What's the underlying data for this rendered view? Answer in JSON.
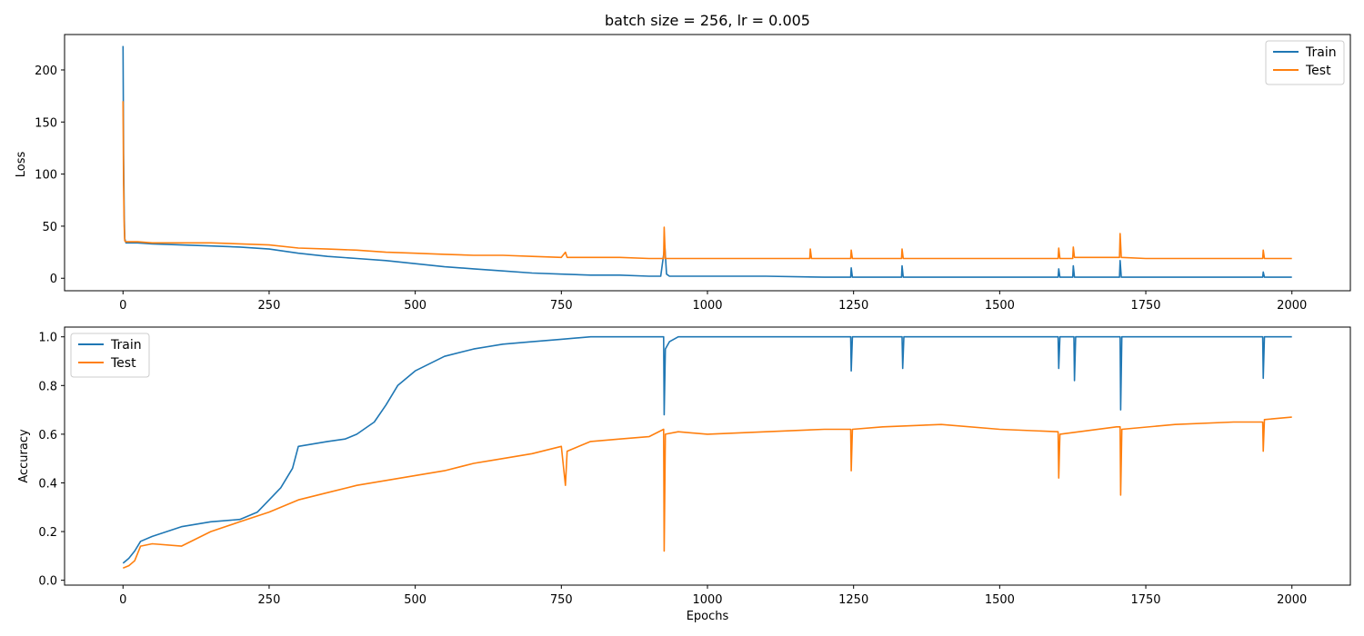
{
  "chart_data": [
    {
      "type": "line",
      "title": "batch size = 256, lr = 0.005",
      "xlabel": "",
      "ylabel": "Loss",
      "xlim": [
        -100,
        2100
      ],
      "ylim": [
        -12,
        234
      ],
      "xticks": [
        0,
        250,
        500,
        750,
        1000,
        1250,
        1500,
        1750,
        2000
      ],
      "yticks": [
        0,
        50,
        100,
        150,
        200
      ],
      "legend": "top-right",
      "grid": false,
      "series": [
        {
          "name": "Train",
          "color": "#1f77b4",
          "x": [
            0,
            1,
            2,
            3,
            5,
            25,
            50,
            100,
            150,
            200,
            250,
            300,
            350,
            400,
            450,
            500,
            550,
            600,
            650,
            700,
            750,
            800,
            850,
            900,
            920,
            927,
            930,
            935,
            950,
            1000,
            1100,
            1200,
            1245,
            1246,
            1248,
            1300,
            1332,
            1333,
            1335,
            1400,
            1500,
            1550,
            1600,
            1601,
            1603,
            1625,
            1626,
            1628,
            1700,
            1705,
            1706,
            1708,
            1750,
            1800,
            1900,
            1950,
            1951,
            1953,
            2000
          ],
          "y": [
            223,
            120,
            60,
            38,
            34,
            34,
            33,
            32,
            31,
            30,
            28,
            24,
            21,
            19,
            17,
            14,
            11,
            9,
            7,
            5,
            4,
            3,
            3,
            2,
            2,
            31,
            4,
            2,
            2,
            2,
            2,
            1,
            1,
            10,
            1,
            1,
            1,
            12,
            1,
            1,
            1,
            1,
            1,
            9,
            1,
            1,
            12,
            1,
            1,
            1,
            17,
            1,
            1,
            1,
            1,
            1,
            6,
            1,
            1
          ]
        },
        {
          "name": "Test",
          "color": "#ff7f0e",
          "x": [
            0,
            1,
            2,
            3,
            5,
            25,
            50,
            100,
            150,
            200,
            250,
            300,
            350,
            400,
            450,
            500,
            550,
            600,
            650,
            700,
            750,
            757,
            760,
            800,
            850,
            900,
            925,
            926,
            928,
            950,
            1000,
            1100,
            1175,
            1176,
            1178,
            1245,
            1246,
            1248,
            1300,
            1332,
            1333,
            1335,
            1400,
            1500,
            1550,
            1600,
            1601,
            1603,
            1625,
            1626,
            1628,
            1700,
            1705,
            1706,
            1708,
            1750,
            1800,
            1900,
            1950,
            1951,
            1953,
            2000
          ],
          "y": [
            170,
            90,
            50,
            36,
            35,
            35,
            34,
            34,
            34,
            33,
            32,
            29,
            28,
            27,
            25,
            24,
            23,
            22,
            22,
            21,
            20,
            25,
            20,
            20,
            20,
            19,
            19,
            49,
            19,
            19,
            19,
            19,
            19,
            28,
            19,
            19,
            27,
            19,
            19,
            19,
            28,
            19,
            19,
            19,
            19,
            19,
            29,
            19,
            19,
            30,
            20,
            20,
            20,
            43,
            20,
            19,
            19,
            19,
            19,
            27,
            19,
            19
          ]
        }
      ]
    },
    {
      "type": "line",
      "title": "",
      "xlabel": "Epochs",
      "ylabel": "Accuracy",
      "xlim": [
        -100,
        2100
      ],
      "ylim": [
        -0.02,
        1.04
      ],
      "xticks": [
        0,
        250,
        500,
        750,
        1000,
        1250,
        1500,
        1750,
        2000
      ],
      "yticks": [
        0.0,
        0.2,
        0.4,
        0.6,
        0.8,
        1.0
      ],
      "legend": "top-left",
      "grid": false,
      "series": [
        {
          "name": "Train",
          "color": "#1f77b4",
          "x": [
            0,
            10,
            20,
            30,
            50,
            100,
            150,
            200,
            230,
            250,
            270,
            290,
            300,
            350,
            380,
            400,
            430,
            450,
            470,
            500,
            550,
            600,
            650,
            700,
            750,
            800,
            850,
            900,
            925,
            926,
            928,
            935,
            950,
            1000,
            1100,
            1200,
            1245,
            1246,
            1248,
            1333,
            1334,
            1336,
            1400,
            1500,
            1600,
            1601,
            1603,
            1627,
            1628,
            1630,
            1700,
            1706,
            1707,
            1709,
            1800,
            1900,
            1950,
            1951,
            1953,
            2000
          ],
          "y": [
            0.07,
            0.09,
            0.12,
            0.16,
            0.18,
            0.22,
            0.24,
            0.25,
            0.28,
            0.33,
            0.38,
            0.46,
            0.55,
            0.57,
            0.58,
            0.6,
            0.65,
            0.72,
            0.8,
            0.86,
            0.92,
            0.95,
            0.97,
            0.98,
            0.99,
            1.0,
            1.0,
            1.0,
            1.0,
            0.68,
            0.95,
            0.98,
            1.0,
            1.0,
            1.0,
            1.0,
            1.0,
            0.86,
            1.0,
            1.0,
            0.87,
            1.0,
            1.0,
            1.0,
            1.0,
            0.87,
            1.0,
            1.0,
            0.82,
            1.0,
            1.0,
            1.0,
            0.7,
            1.0,
            1.0,
            1.0,
            1.0,
            0.83,
            1.0,
            1.0
          ]
        },
        {
          "name": "Test",
          "color": "#ff7f0e",
          "x": [
            0,
            10,
            20,
            30,
            50,
            100,
            150,
            200,
            250,
            300,
            350,
            400,
            450,
            500,
            550,
            600,
            650,
            700,
            750,
            757,
            760,
            800,
            850,
            900,
            925,
            926,
            928,
            950,
            1000,
            1100,
            1200,
            1245,
            1246,
            1248,
            1300,
            1400,
            1500,
            1600,
            1601,
            1603,
            1700,
            1706,
            1707,
            1709,
            1800,
            1900,
            1950,
            1951,
            1953,
            2000
          ],
          "y": [
            0.05,
            0.06,
            0.08,
            0.14,
            0.15,
            0.14,
            0.2,
            0.24,
            0.28,
            0.33,
            0.36,
            0.39,
            0.41,
            0.43,
            0.45,
            0.48,
            0.5,
            0.52,
            0.55,
            0.39,
            0.53,
            0.57,
            0.58,
            0.59,
            0.62,
            0.12,
            0.6,
            0.61,
            0.6,
            0.61,
            0.62,
            0.62,
            0.45,
            0.62,
            0.63,
            0.64,
            0.62,
            0.61,
            0.42,
            0.6,
            0.63,
            0.63,
            0.35,
            0.62,
            0.64,
            0.65,
            0.65,
            0.53,
            0.66,
            0.67
          ]
        }
      ]
    }
  ]
}
